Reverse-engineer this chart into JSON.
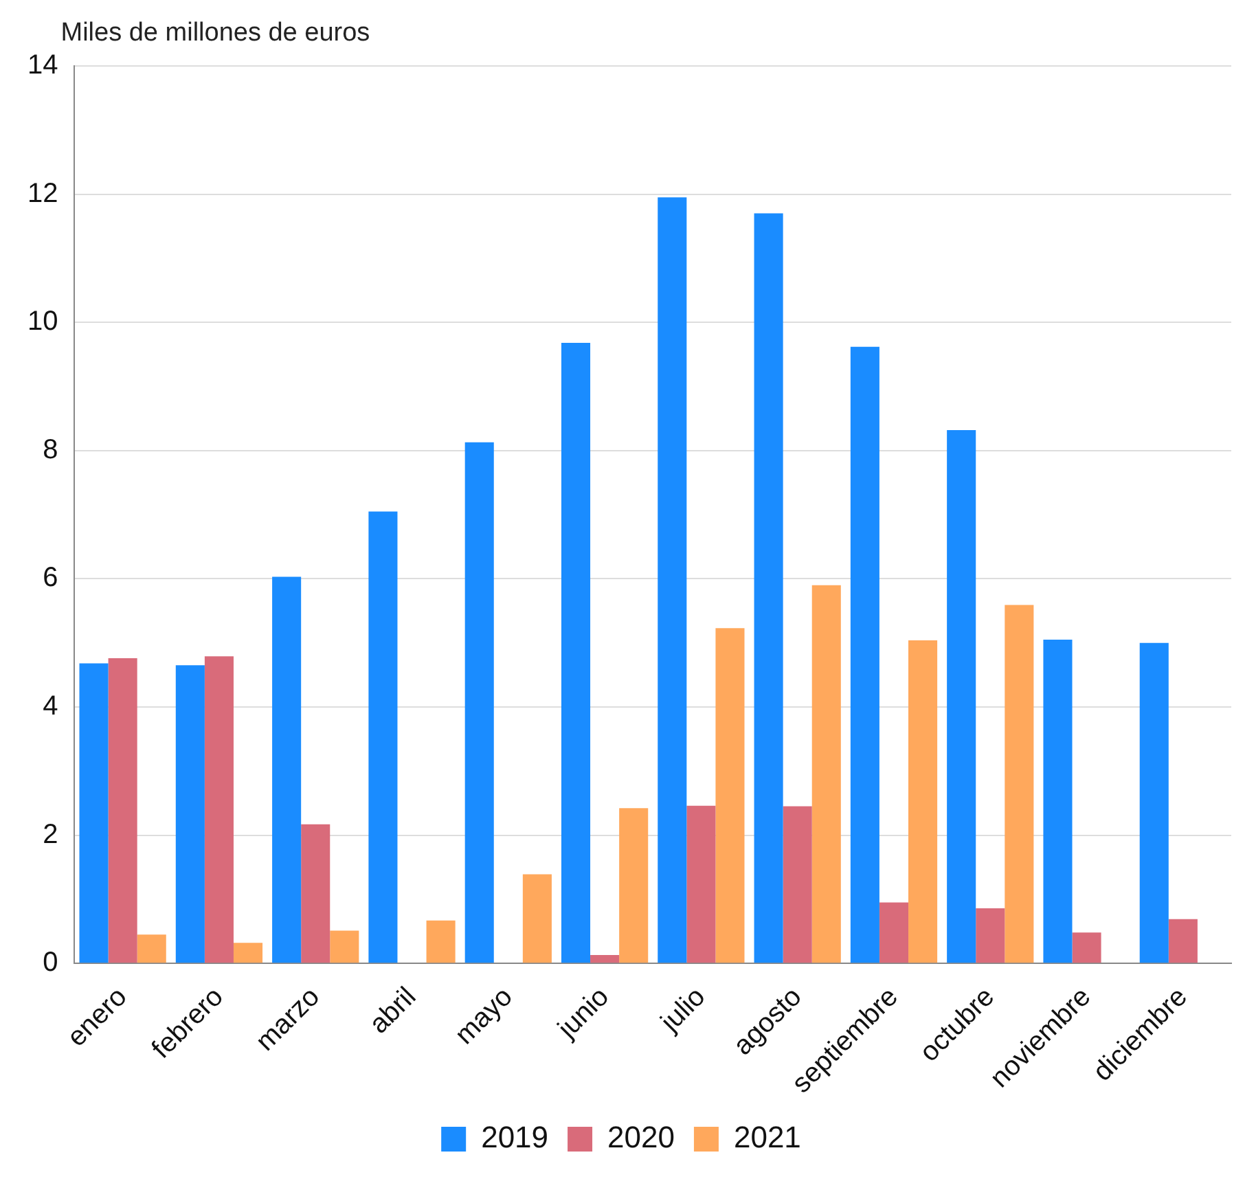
{
  "chart_data": {
    "type": "bar",
    "ylabel": "Miles de millones de euros",
    "categories": [
      "enero",
      "febrero",
      "marzo",
      "abril",
      "mayo",
      "junio",
      "julio",
      "agosto",
      "septiembre",
      "octubre",
      "noviembre",
      "diciembre"
    ],
    "series": [
      {
        "name": "2019",
        "color": "#1a8cff",
        "values": [
          4.68,
          4.65,
          6.03,
          7.05,
          8.13,
          9.68,
          11.95,
          11.7,
          9.62,
          8.32,
          5.05,
          5.0
        ]
      },
      {
        "name": "2020",
        "color": "#d96b7a",
        "values": [
          4.76,
          4.79,
          2.17,
          0,
          0,
          0.13,
          2.46,
          2.45,
          0.95,
          0.86,
          0.48,
          0.69
        ]
      },
      {
        "name": "2021",
        "color": "#ffa85c",
        "values": [
          0.45,
          0.32,
          0.51,
          0.67,
          1.39,
          2.42,
          5.23,
          5.9,
          5.04,
          5.59,
          null,
          null
        ]
      }
    ],
    "ylim": [
      0,
      14
    ],
    "yticks": [
      0,
      2,
      4,
      6,
      8,
      10,
      12,
      14
    ],
    "grid": "y",
    "legend": "bottom"
  }
}
